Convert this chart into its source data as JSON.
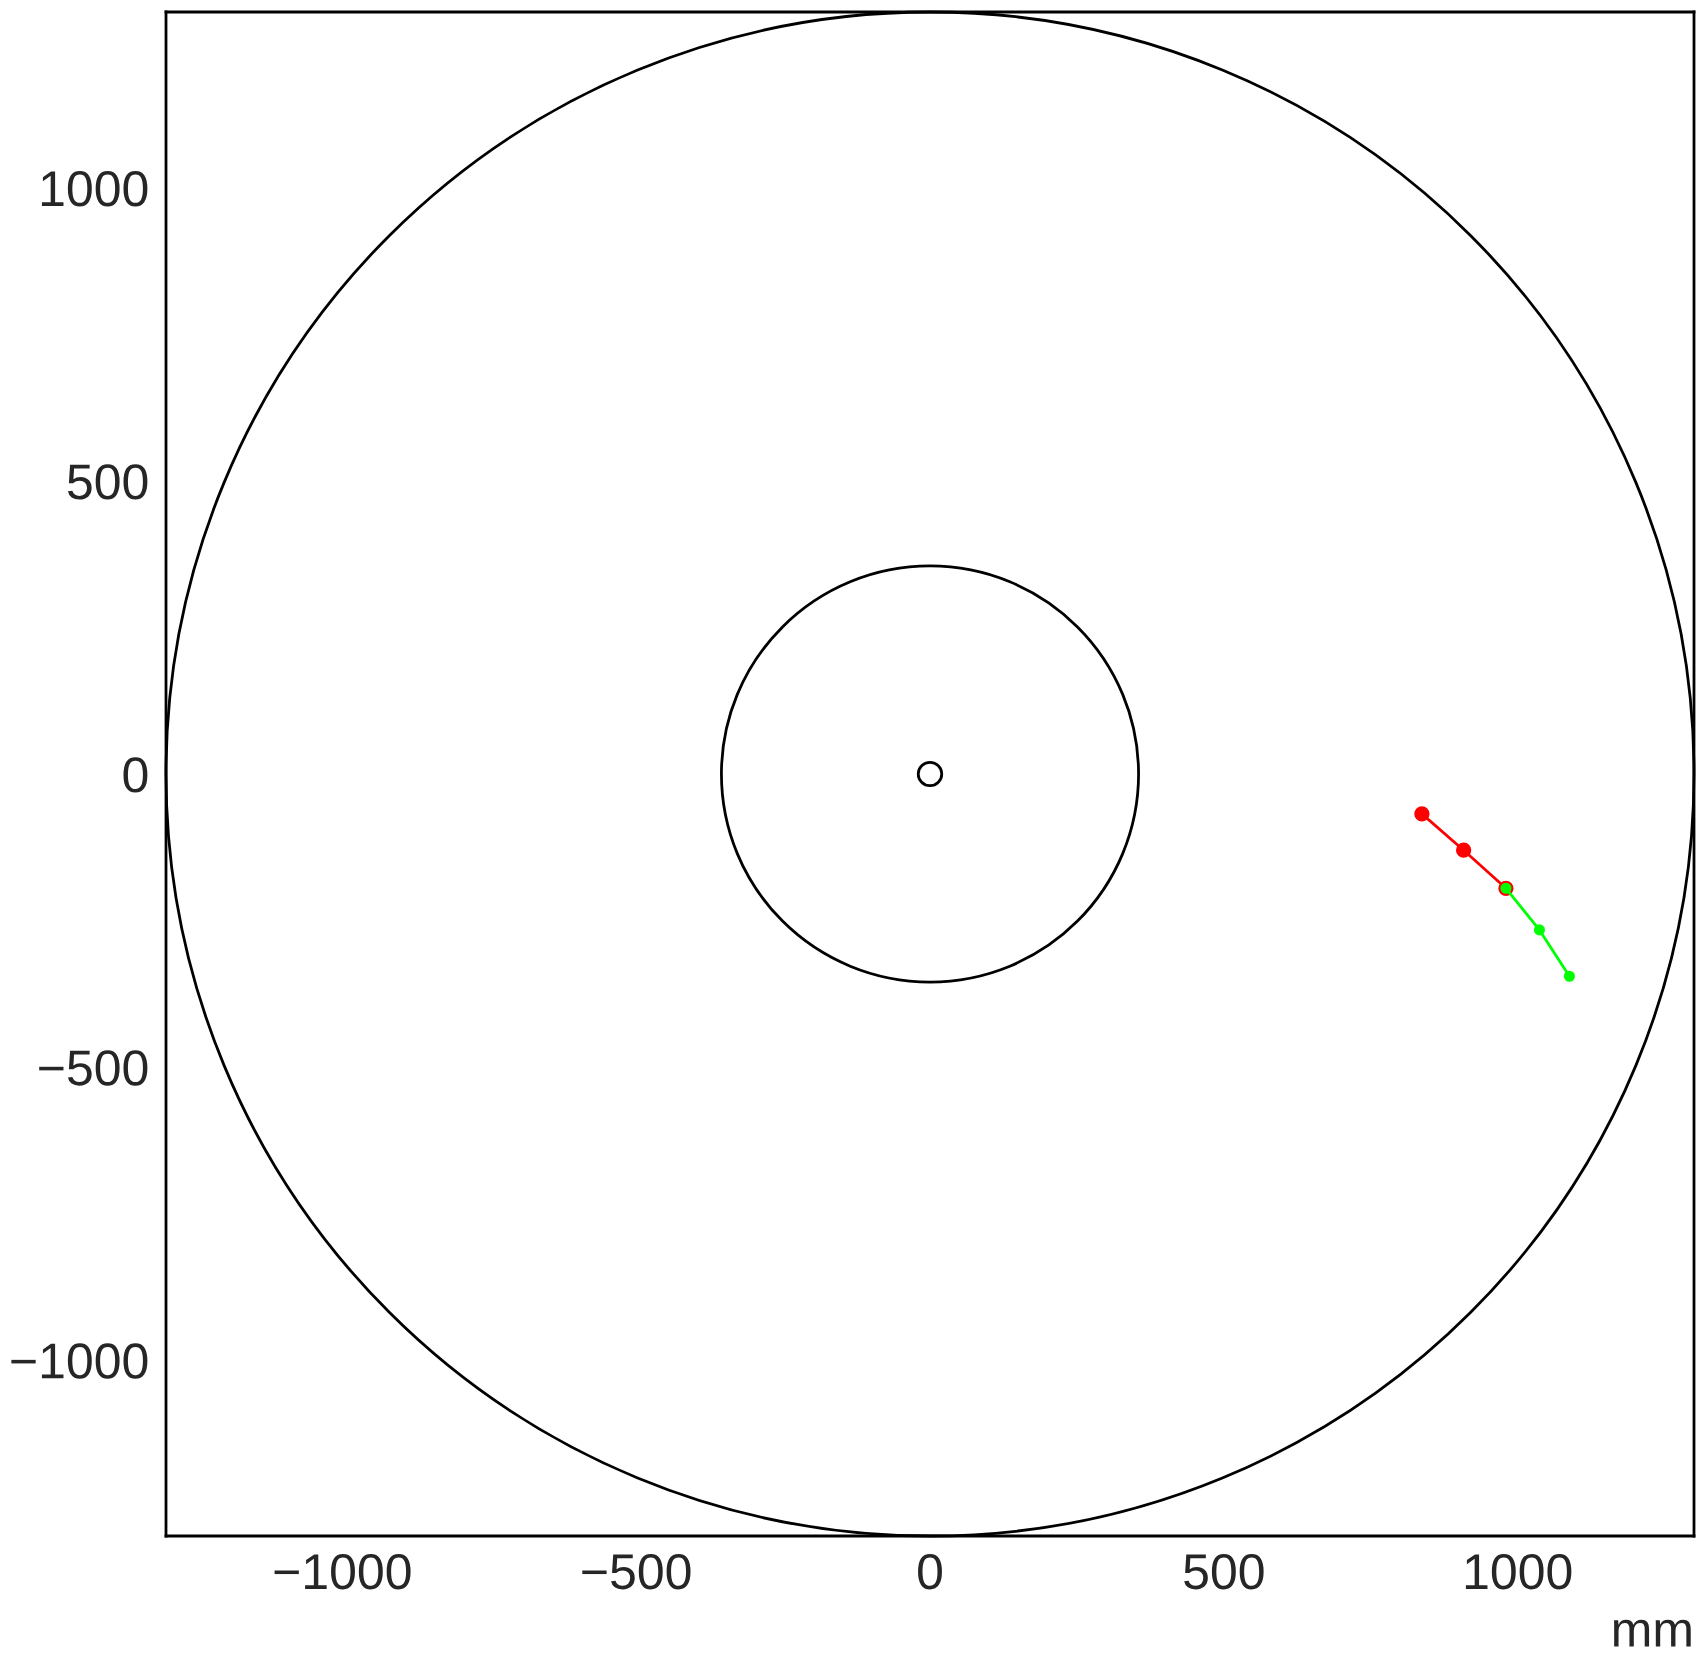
{
  "chart_data": {
    "type": "line",
    "xlabel": "mm",
    "xlim": [
      -1300,
      1300
    ],
    "ylim": [
      -1300,
      1300
    ],
    "xticks": [
      -1000,
      -500,
      0,
      500,
      1000
    ],
    "yticks": [
      -1000,
      -500,
      0,
      500,
      1000
    ],
    "grid": false,
    "series": [
      {
        "color": "#ff0000",
        "marker": "circle",
        "x": [
          837,
          908,
          980
        ],
        "values": [
          -68,
          -130,
          -195
        ]
      },
      {
        "color": "#00ff00",
        "marker": "circle",
        "x": [
          980,
          1037,
          1088
        ],
        "values": [
          -195,
          -266,
          -345
        ]
      }
    ]
  }
}
